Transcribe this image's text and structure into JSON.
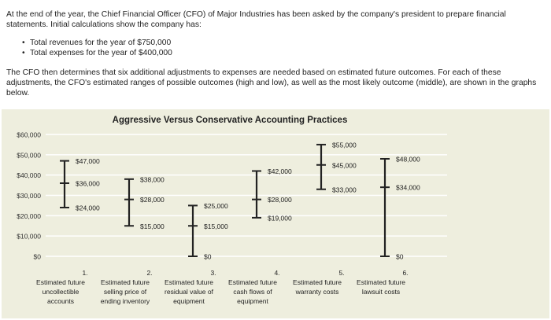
{
  "intro": "At the end of the year, the Chief Financial Officer (CFO) of Major Industries has been asked by the company's president to prepare financial statements. Initial calculations show the company has:",
  "bullets": [
    "Total revenues for the year of $750,000",
    "Total expenses for the year of $400,000"
  ],
  "para2": "The CFO then determines that six additional adjustments to expenses are needed based on estimated future outcomes. For each of these adjustments, the CFO's estimated ranges of possible outcomes (high and low), as well as the most likely outcome (middle), are shown in the graphs below.",
  "colors": {
    "panel": "#eeeede",
    "bars": "#222222",
    "grid": "#ffffff"
  },
  "chart_data": {
    "type": "range",
    "title": "Aggressive Versus Conservative Accounting Practices",
    "ylim": [
      0,
      60000
    ],
    "ytick_labels": [
      "$60,000",
      "$50,000",
      "$40,000",
      "$30,000",
      "$20,000",
      "$10,000",
      "$0"
    ],
    "yticks": [
      60000,
      50000,
      40000,
      30000,
      20000,
      10000,
      0
    ],
    "grid": true,
    "categories": [
      {
        "num": "1.",
        "lines": [
          "Estimated future",
          "uncollectible",
          "accounts"
        ]
      },
      {
        "num": "2.",
        "lines": [
          "Estimated future",
          "selling price of",
          "ending inventory"
        ]
      },
      {
        "num": "3.",
        "lines": [
          "Estimated future",
          "residual value of",
          "equipment"
        ]
      },
      {
        "num": "4.",
        "lines": [
          "Estimated future",
          "cash flows of",
          "equipment"
        ]
      },
      {
        "num": "5.",
        "lines": [
          "Estimated future",
          "warranty costs"
        ]
      },
      {
        "num": "6.",
        "lines": [
          "Estimated future",
          "lawsuit costs"
        ]
      }
    ],
    "series": [
      {
        "high": 47000,
        "mid": 36000,
        "low": 24000,
        "labels": [
          "$47,000",
          "$36,000",
          "$24,000"
        ]
      },
      {
        "high": 38000,
        "mid": 28000,
        "low": 15000,
        "labels": [
          "$38,000",
          "$28,000",
          "$15,000"
        ]
      },
      {
        "high": 25000,
        "mid": 15000,
        "low": 0,
        "labels": [
          "$25,000",
          "$15,000",
          "$0"
        ]
      },
      {
        "high": 42000,
        "mid": 28000,
        "low": 19000,
        "labels": [
          "$42,000",
          "$28,000",
          "$19,000"
        ]
      },
      {
        "high": 55000,
        "mid": 45000,
        "low": 33000,
        "labels": [
          "$55,000",
          "$45,000",
          "$33,000"
        ]
      },
      {
        "high": 48000,
        "mid": 34000,
        "low": 0,
        "labels": [
          "$48,000",
          "$34,000",
          "$0"
        ]
      }
    ]
  }
}
